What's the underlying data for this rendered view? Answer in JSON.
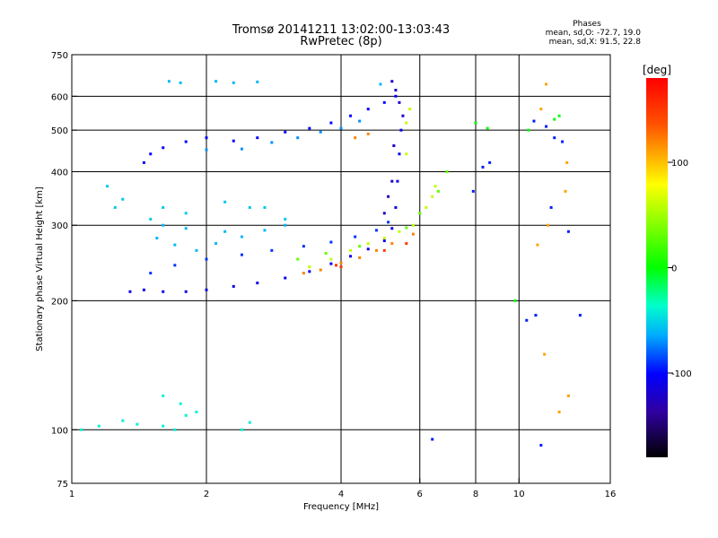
{
  "chart_data": {
    "type": "scatter",
    "title": "Tromsø 20141211 13:02:00-13:03:43",
    "subtitle": "RwPretec (8p)",
    "xlabel": "Frequency [MHz]",
    "ylabel": "Stationary phase Virtual Height [km]",
    "x_scale": "log",
    "y_scale": "log",
    "xlim": [
      1,
      16
    ],
    "ylim": [
      75,
      750
    ],
    "xticks": [
      1,
      2,
      4,
      6,
      8,
      10,
      16
    ],
    "yticks": [
      75,
      100,
      200,
      300,
      400,
      500,
      600,
      750
    ],
    "grid_x": [
      2,
      4,
      6,
      8,
      10
    ],
    "grid_y": [
      100,
      200,
      300,
      400,
      500,
      600
    ],
    "stats": {
      "heading": "Phases",
      "line1": "mean, sd,O: -72.7, 19.0",
      "line2": "mean, sd,X:  91.5, 22.8"
    },
    "colorbar": {
      "label": "[deg]",
      "range": [
        -180,
        180
      ],
      "ticks": [
        100,
        0,
        -100
      ],
      "tick_labels": [
        "100",
        "0",
        "-100"
      ],
      "colormap": "rainbow"
    },
    "series": [
      {
        "phase": -110,
        "points": [
          [
            1.35,
            210
          ],
          [
            1.45,
            212
          ],
          [
            1.6,
            210
          ],
          [
            1.8,
            210
          ],
          [
            2.0,
            212
          ],
          [
            2.3,
            216
          ],
          [
            2.6,
            220
          ],
          [
            3.0,
            226
          ],
          [
            3.4,
            234
          ],
          [
            3.8,
            244
          ],
          [
            4.2,
            254
          ],
          [
            4.6,
            264
          ],
          [
            5.0,
            276
          ],
          [
            5.2,
            295
          ],
          [
            5.3,
            330
          ],
          [
            5.35,
            380
          ],
          [
            5.4,
            440
          ],
          [
            5.45,
            500
          ]
        ]
      },
      {
        "phase": -90,
        "points": [
          [
            1.5,
            232
          ],
          [
            1.7,
            242
          ],
          [
            2.0,
            250
          ],
          [
            2.4,
            256
          ],
          [
            2.8,
            262
          ],
          [
            3.3,
            268
          ],
          [
            3.8,
            274
          ],
          [
            4.3,
            282
          ],
          [
            4.8,
            292
          ],
          [
            5.1,
            305
          ]
        ]
      },
      {
        "phase": -60,
        "points": [
          [
            1.55,
            280
          ],
          [
            1.7,
            270
          ],
          [
            1.9,
            262
          ],
          [
            2.1,
            272
          ],
          [
            2.4,
            282
          ],
          [
            2.7,
            292
          ],
          [
            3.0,
            300
          ],
          [
            1.6,
            300
          ],
          [
            1.8,
            295
          ],
          [
            2.2,
            290
          ]
        ]
      },
      {
        "phase": -100,
        "points": [
          [
            1.45,
            420
          ],
          [
            1.5,
            440
          ],
          [
            1.6,
            455
          ],
          [
            1.8,
            470
          ],
          [
            2.0,
            480
          ],
          [
            2.3,
            472
          ],
          [
            2.6,
            480
          ],
          [
            3.0,
            495
          ],
          [
            3.4,
            505
          ],
          [
            3.8,
            520
          ],
          [
            4.2,
            540
          ],
          [
            4.6,
            560
          ],
          [
            5.0,
            580
          ],
          [
            5.3,
            600
          ]
        ]
      },
      {
        "phase": -70,
        "points": [
          [
            2.0,
            450
          ],
          [
            2.4,
            452
          ],
          [
            2.8,
            468
          ],
          [
            3.2,
            480
          ],
          [
            3.6,
            495
          ],
          [
            4.0,
            505
          ],
          [
            4.4,
            525
          ]
        ]
      },
      {
        "phase": -55,
        "points": [
          [
            1.25,
            330
          ],
          [
            1.3,
            345
          ],
          [
            1.2,
            370
          ],
          [
            1.5,
            310
          ],
          [
            1.6,
            330
          ],
          [
            1.8,
            320
          ],
          [
            2.2,
            340
          ],
          [
            2.5,
            330
          ],
          [
            2.7,
            330
          ],
          [
            3.0,
            310
          ]
        ]
      },
      {
        "phase": -60,
        "points": [
          [
            1.65,
            650
          ],
          [
            1.75,
            645
          ],
          [
            2.1,
            650
          ],
          [
            2.3,
            645
          ],
          [
            2.6,
            648
          ],
          [
            4.9,
            640
          ]
        ]
      },
      {
        "phase": -40,
        "points": [
          [
            1.05,
            100
          ],
          [
            1.15,
            102
          ],
          [
            1.3,
            105
          ],
          [
            1.4,
            103
          ],
          [
            1.6,
            102
          ],
          [
            1.7,
            100
          ],
          [
            1.8,
            108
          ],
          [
            1.9,
            110
          ],
          [
            1.6,
            120
          ],
          [
            1.75,
            115
          ],
          [
            2.4,
            100
          ],
          [
            2.5,
            104
          ]
        ]
      },
      {
        "phase": -120,
        "points": [
          [
            5.2,
            650
          ],
          [
            5.3,
            620
          ],
          [
            5.4,
            580
          ],
          [
            5.5,
            540
          ],
          [
            5.2,
            380
          ],
          [
            5.1,
            350
          ],
          [
            5.0,
            320
          ],
          [
            5.25,
            460
          ]
        ]
      },
      {
        "phase": 60,
        "points": [
          [
            3.4,
            240
          ],
          [
            3.8,
            250
          ],
          [
            4.2,
            262
          ],
          [
            4.6,
            272
          ],
          [
            5.0,
            280
          ],
          [
            5.4,
            290
          ],
          [
            5.8,
            300
          ],
          [
            6.2,
            330
          ],
          [
            6.4,
            350
          ],
          [
            6.5,
            370
          ],
          [
            5.6,
            520
          ],
          [
            5.7,
            560
          ],
          [
            5.6,
            440
          ]
        ]
      },
      {
        "phase": 30,
        "points": [
          [
            3.2,
            250
          ],
          [
            3.7,
            258
          ],
          [
            4.4,
            268
          ],
          [
            5.6,
            296
          ],
          [
            6.0,
            320
          ],
          [
            6.6,
            360
          ],
          [
            6.9,
            400
          ]
        ]
      },
      {
        "phase": 120,
        "points": [
          [
            3.3,
            232
          ],
          [
            3.6,
            236
          ],
          [
            4.0,
            245
          ],
          [
            4.4,
            252
          ],
          [
            4.8,
            262
          ],
          [
            5.2,
            272
          ],
          [
            5.8,
            286
          ],
          [
            4.3,
            480
          ],
          [
            4.6,
            490
          ]
        ]
      },
      {
        "phase": 150,
        "points": [
          [
            5.0,
            262
          ],
          [
            5.6,
            272
          ],
          [
            4.0,
            240
          ],
          [
            3.9,
            242
          ]
        ]
      },
      {
        "phase": 110,
        "points": [
          [
            11.5,
            640
          ],
          [
            11.2,
            560
          ],
          [
            12.8,
            420
          ],
          [
            12.7,
            360
          ],
          [
            11.6,
            300
          ],
          [
            11.0,
            270
          ],
          [
            11.4,
            150
          ],
          [
            12.9,
            120
          ],
          [
            12.3,
            110
          ]
        ]
      },
      {
        "phase": -95,
        "points": [
          [
            6.4,
            95
          ],
          [
            10.8,
            525
          ],
          [
            11.5,
            510
          ],
          [
            12.0,
            480
          ],
          [
            12.5,
            470
          ],
          [
            11.8,
            330
          ],
          [
            12.9,
            290
          ],
          [
            13.7,
            185
          ],
          [
            10.9,
            185
          ],
          [
            10.4,
            180
          ],
          [
            11.2,
            92
          ],
          [
            7.9,
            360
          ],
          [
            8.3,
            410
          ],
          [
            8.6,
            420
          ]
        ]
      },
      {
        "phase": 0,
        "points": [
          [
            8.0,
            520
          ],
          [
            8.5,
            505
          ],
          [
            9.8,
            200
          ],
          [
            10.5,
            500
          ],
          [
            12.0,
            530
          ],
          [
            12.3,
            540
          ]
        ]
      }
    ]
  }
}
